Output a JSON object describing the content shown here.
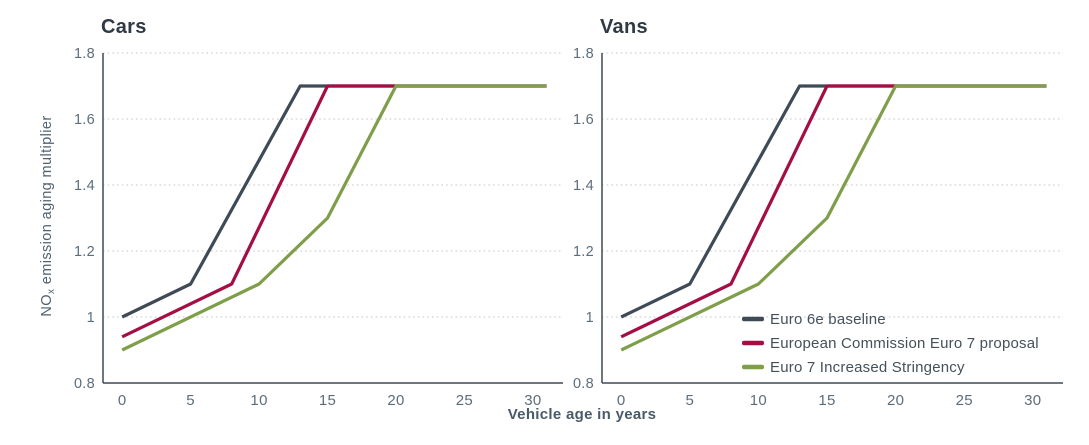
{
  "figure": {
    "xlabel": "Vehicle age in years",
    "ylabel_prefix": "NO",
    "ylabel_sub": "x",
    "ylabel_suffix": " emission aging multiplier"
  },
  "colors": {
    "baseline": "#3e4a56",
    "proposal": "#a30e44",
    "stringency": "#7e9e49",
    "axis": "#3e4a56",
    "grid": "#ccd2d7",
    "tick_text": "#5c6d7b",
    "title_text": "#2f3a44",
    "label_text": "#4a5a68"
  },
  "legend": {
    "items": [
      {
        "label": "Euro 6e baseline",
        "color": "#3e4a56"
      },
      {
        "label": "European Commission Euro 7 proposal",
        "color": "#a30e44"
      },
      {
        "label": "Euro 7 Increased Stringency",
        "color": "#7e9e49"
      }
    ]
  },
  "chart_data": [
    {
      "type": "line",
      "title": "Cars",
      "xlabel": "Vehicle age in years",
      "ylabel": "NOx emission aging multiplier",
      "xlim": [
        -1.4,
        32.2
      ],
      "ylim": [
        0.8,
        1.8
      ],
      "x_ticks": [
        0,
        5,
        10,
        15,
        20,
        25,
        30
      ],
      "y_ticks": [
        0.8,
        1,
        1.2,
        1.4,
        1.6,
        1.8
      ],
      "grid": "horizontal-dotted",
      "show_legend": false,
      "series": [
        {
          "name": "Euro 6e baseline",
          "color": "#3e4a56",
          "points": [
            [
              0,
              1.0
            ],
            [
              5,
              1.1
            ],
            [
              13,
              1.7
            ],
            [
              31,
              1.7
            ]
          ]
        },
        {
          "name": "European Commission Euro 7 proposal",
          "color": "#a30e44",
          "points": [
            [
              0,
              0.94
            ],
            [
              8,
              1.1
            ],
            [
              15,
              1.7
            ],
            [
              31,
              1.7
            ]
          ]
        },
        {
          "name": "Euro 7 Increased Stringency",
          "color": "#7e9e49",
          "points": [
            [
              0,
              0.9
            ],
            [
              10,
              1.1
            ],
            [
              15,
              1.3
            ],
            [
              20,
              1.7
            ],
            [
              31,
              1.7
            ]
          ]
        }
      ]
    },
    {
      "type": "line",
      "title": "Vans",
      "xlabel": "Vehicle age in years",
      "ylabel": "NOx emission aging multiplier",
      "xlim": [
        -1.4,
        32.2
      ],
      "ylim": [
        0.8,
        1.8
      ],
      "x_ticks": [
        0,
        5,
        10,
        15,
        20,
        25,
        30
      ],
      "y_ticks": [
        0.8,
        1,
        1.2,
        1.4,
        1.6,
        1.8
      ],
      "grid": "horizontal-dotted",
      "show_legend": true,
      "legend_position": "inside-bottom-right",
      "series": [
        {
          "name": "Euro 6e baseline",
          "color": "#3e4a56",
          "points": [
            [
              0,
              1.0
            ],
            [
              5,
              1.1
            ],
            [
              13,
              1.7
            ],
            [
              31,
              1.7
            ]
          ]
        },
        {
          "name": "European Commission Euro 7 proposal",
          "color": "#a30e44",
          "points": [
            [
              0,
              0.94
            ],
            [
              8,
              1.1
            ],
            [
              15,
              1.7
            ],
            [
              31,
              1.7
            ]
          ]
        },
        {
          "name": "Euro 7 Increased Stringency",
          "color": "#7e9e49",
          "points": [
            [
              0,
              0.9
            ],
            [
              10,
              1.1
            ],
            [
              15,
              1.3
            ],
            [
              20,
              1.7
            ],
            [
              31,
              1.7
            ]
          ]
        }
      ]
    }
  ]
}
